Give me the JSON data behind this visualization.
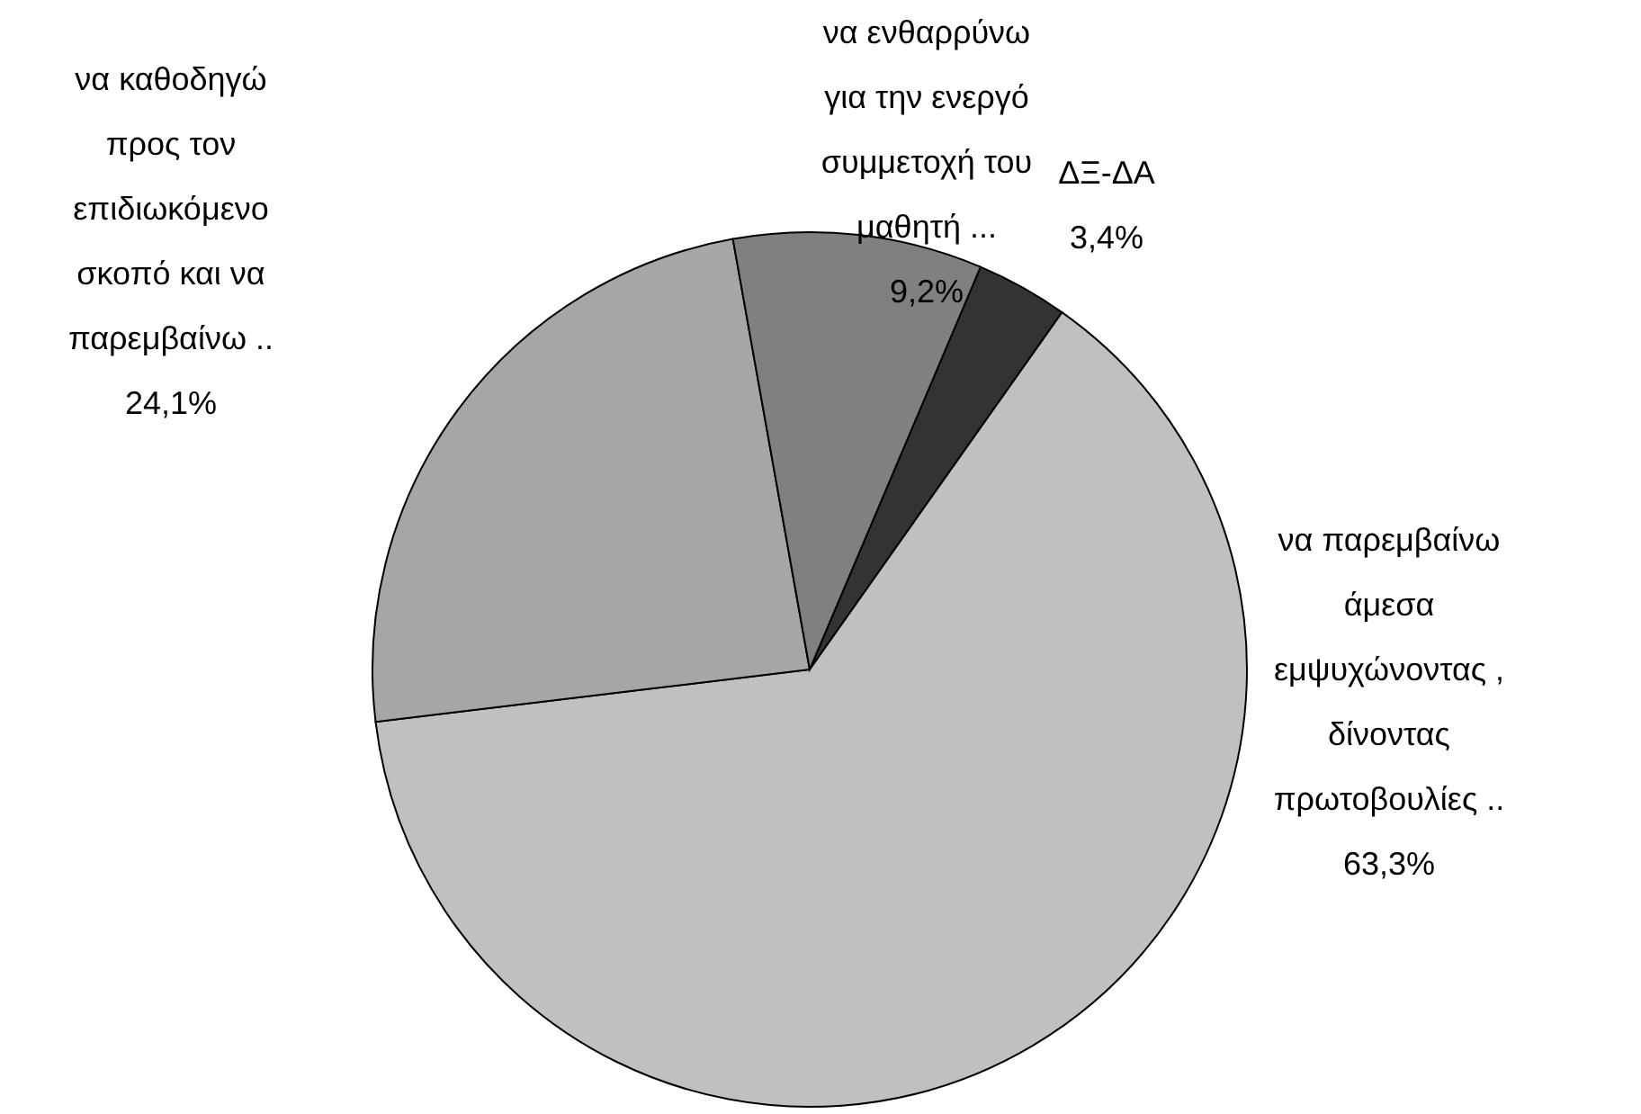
{
  "chart_data": {
    "type": "pie",
    "categories": [
      "ΔΞ-ΔΑ",
      "να παρεμβαίνω\nάμεσα\nεμψυχώνοντας ,\nδίνοντας\nπρωτοβουλίες ..",
      "να καθοδηγώ\nπρος τον\nεπιδιωκόμενο\nσκοπό και να\nπαρεμβαίνω ..",
      "να ενθαρρύνω\nγια την ενεργό\nσυμμετοχή του\nμαθητή ..."
    ],
    "values": [
      3.4,
      63.3,
      24.1,
      9.2
    ],
    "colors": [
      "#333333",
      "#c0c0c0",
      "#a6a6a6",
      "#808080"
    ],
    "value_labels": [
      "3,4%",
      "63,3%",
      "24,1%",
      "9,2%"
    ],
    "legend": false
  }
}
